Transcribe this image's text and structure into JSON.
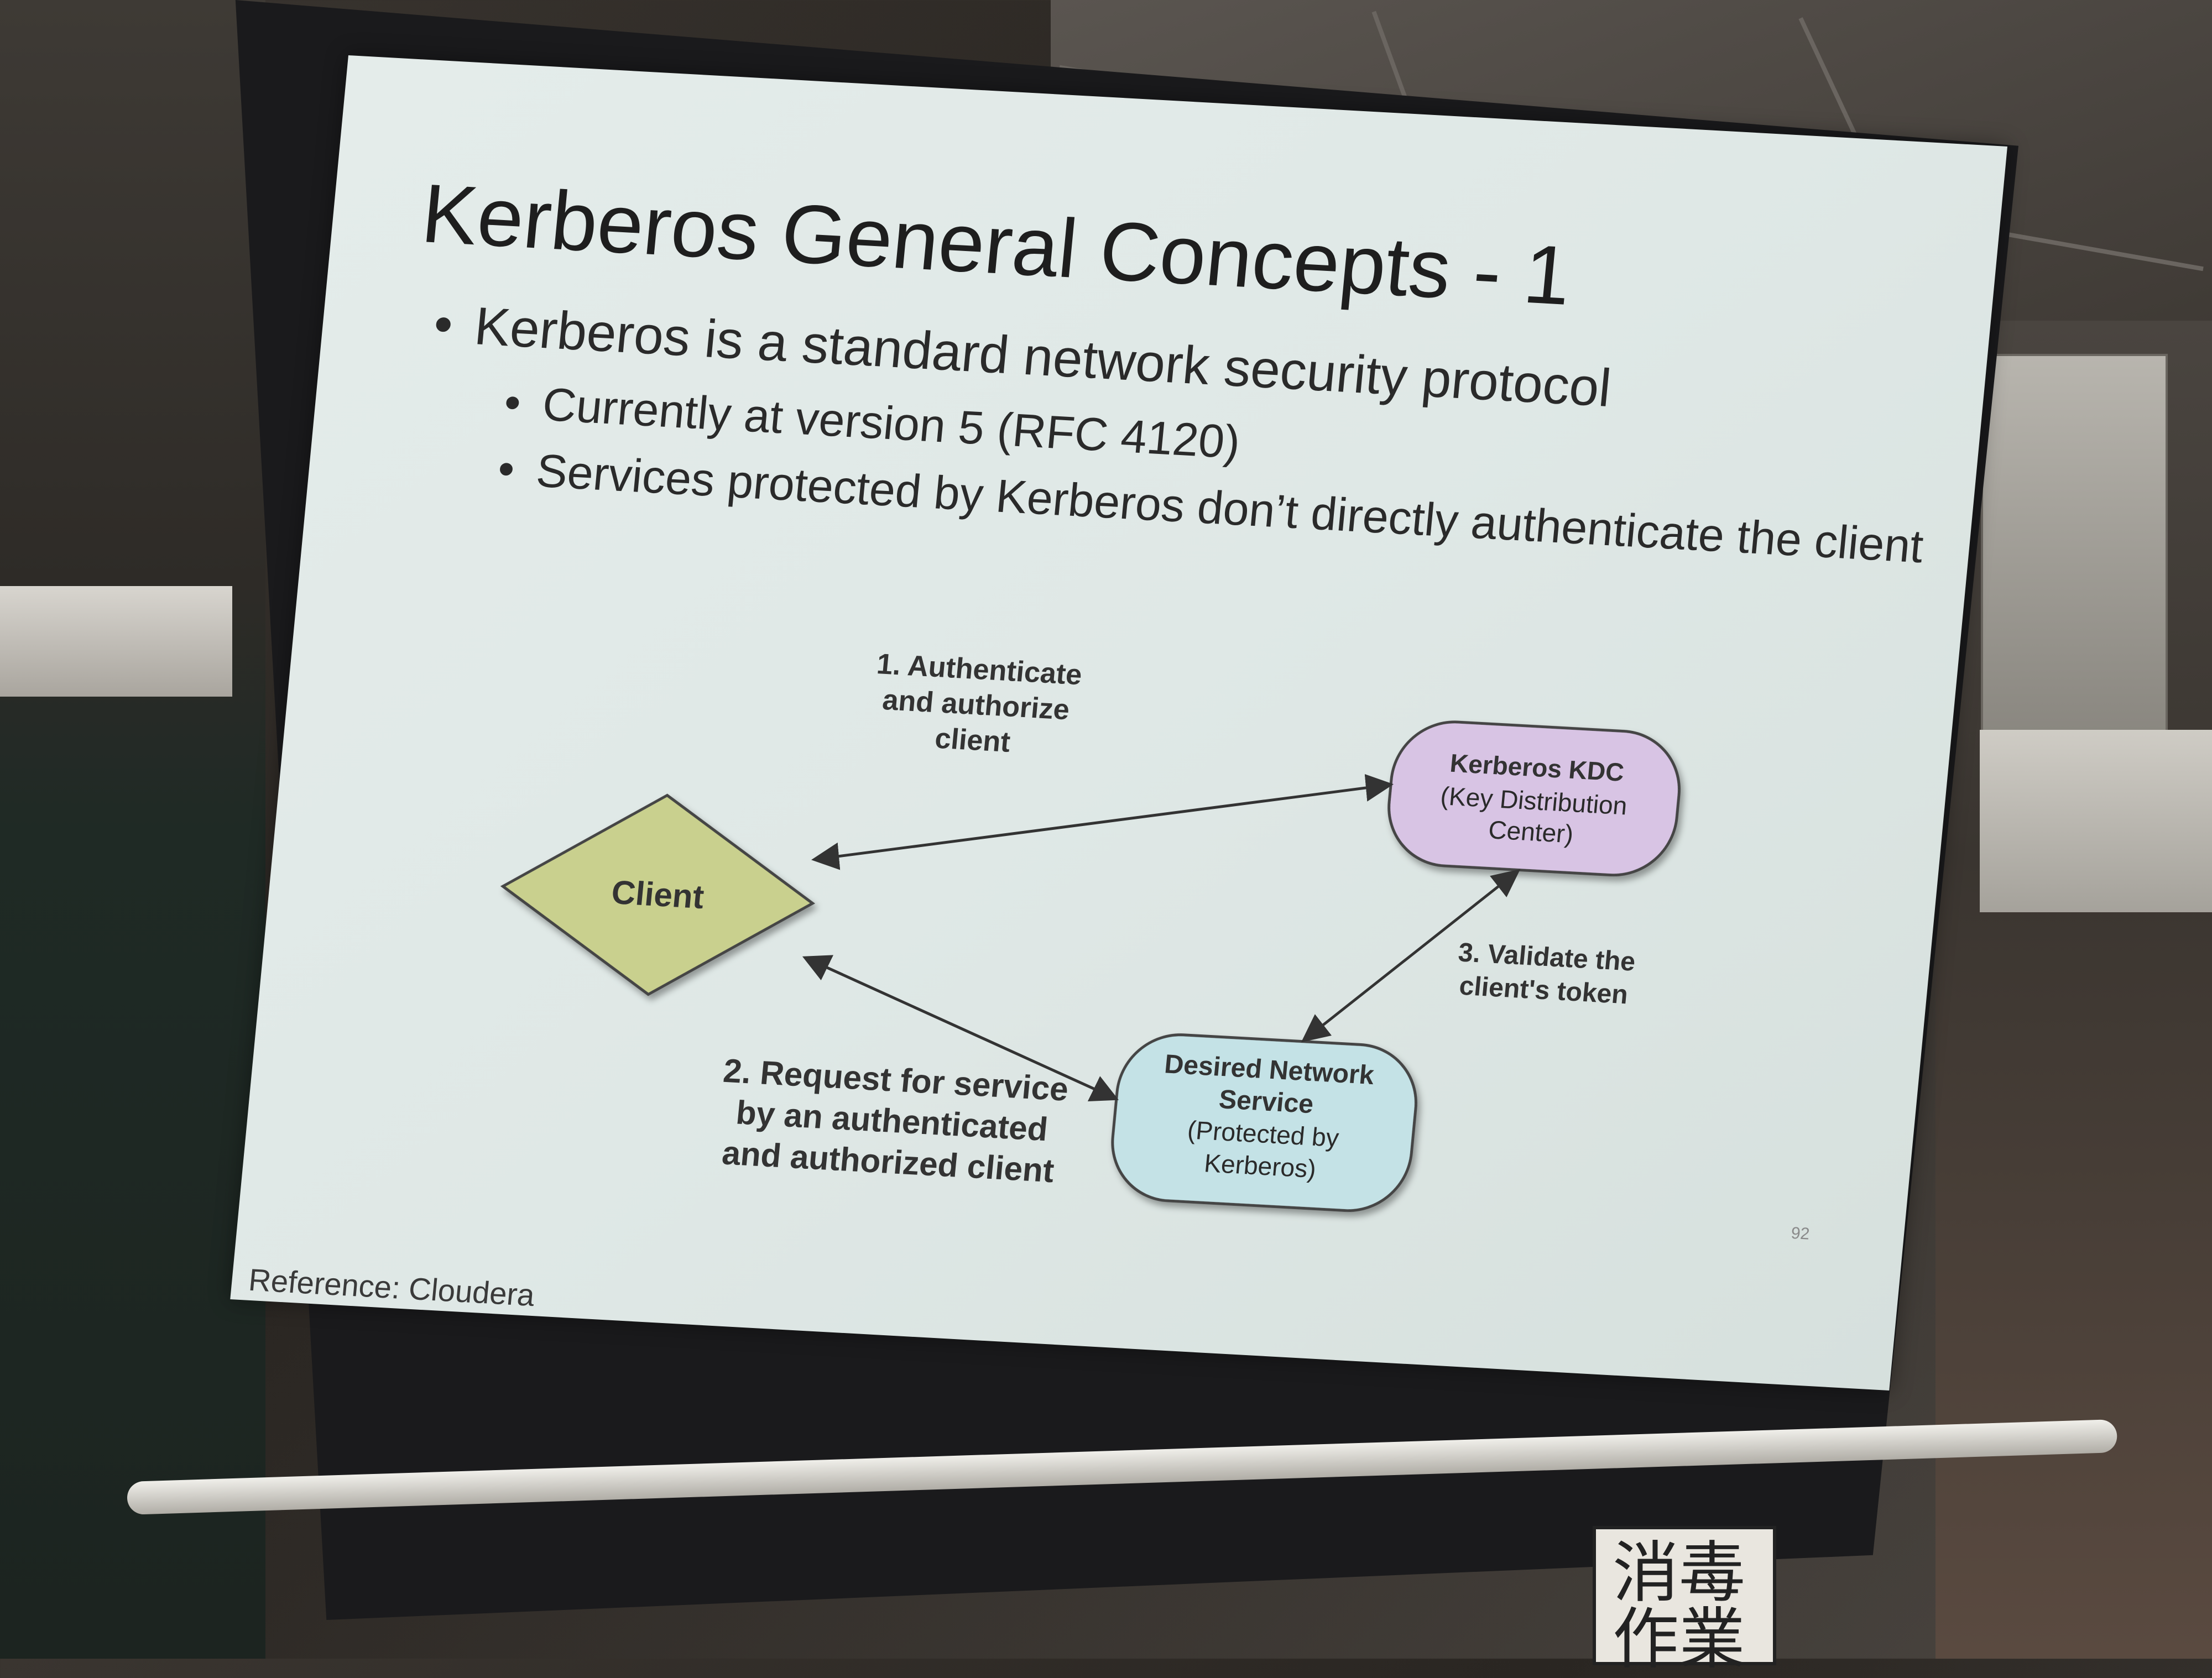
{
  "slide": {
    "title": "Kerberos General Concepts - 1",
    "bullets": [
      "Kerberos is a standard network security protocol",
      "Currently at version 5 (RFC 4120)",
      "Services protected by Kerberos don’t directly authenticate the client"
    ],
    "diagram": {
      "client": "Client",
      "kdc": [
        "Kerberos KDC",
        "(Key Distribution",
        "Center)"
      ],
      "service": [
        "Desired Network",
        "Service",
        "(Protected by",
        "Kerberos)"
      ],
      "step1": [
        "1. Authenticate",
        "and authorize",
        "client"
      ],
      "step2": [
        "2. Request for service",
        "by an authenticated",
        "and authorized client"
      ],
      "step3": [
        "3. Validate the",
        "client's token"
      ],
      "colors": {
        "client_fill": "#c9d08e",
        "kdc_fill": "#d8c4e4",
        "service_fill": "#c4e2e6"
      }
    },
    "footer": "Reference: Cloudera",
    "page_number": "92"
  },
  "poster": {
    "text": "消毒作業"
  }
}
